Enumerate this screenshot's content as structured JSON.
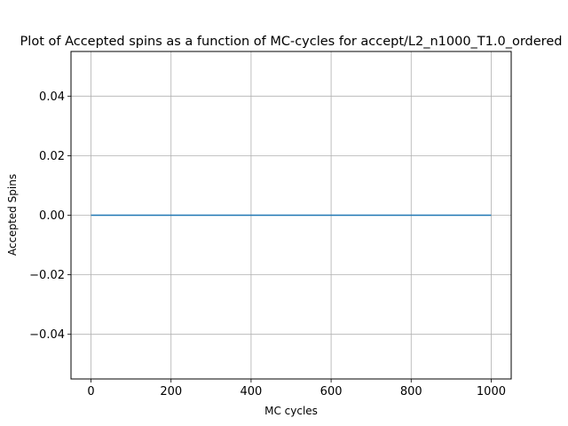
{
  "chart_data": {
    "type": "line",
    "title": "Plot of Accepted spins as a function of MC-cycles for accept/L2_n1000_T1.0_ordered",
    "xlabel": "MC cycles",
    "ylabel": "Accepted Spins",
    "xlim": [
      -50,
      1050
    ],
    "ylim": [
      -0.055,
      0.055
    ],
    "xticks": [
      0,
      200,
      400,
      600,
      800,
      1000
    ],
    "xtick_labels": [
      "0",
      "200",
      "400",
      "600",
      "800",
      "1000"
    ],
    "yticks": [
      -0.04,
      -0.02,
      0.0,
      0.02,
      0.04
    ],
    "ytick_labels": [
      "−0.04",
      "−0.02",
      "0.00",
      "0.02",
      "0.04"
    ],
    "grid": true,
    "series": [
      {
        "color": "#1f77b4",
        "x": [
          0,
          1000
        ],
        "y": [
          0.0,
          0.0
        ]
      }
    ]
  }
}
